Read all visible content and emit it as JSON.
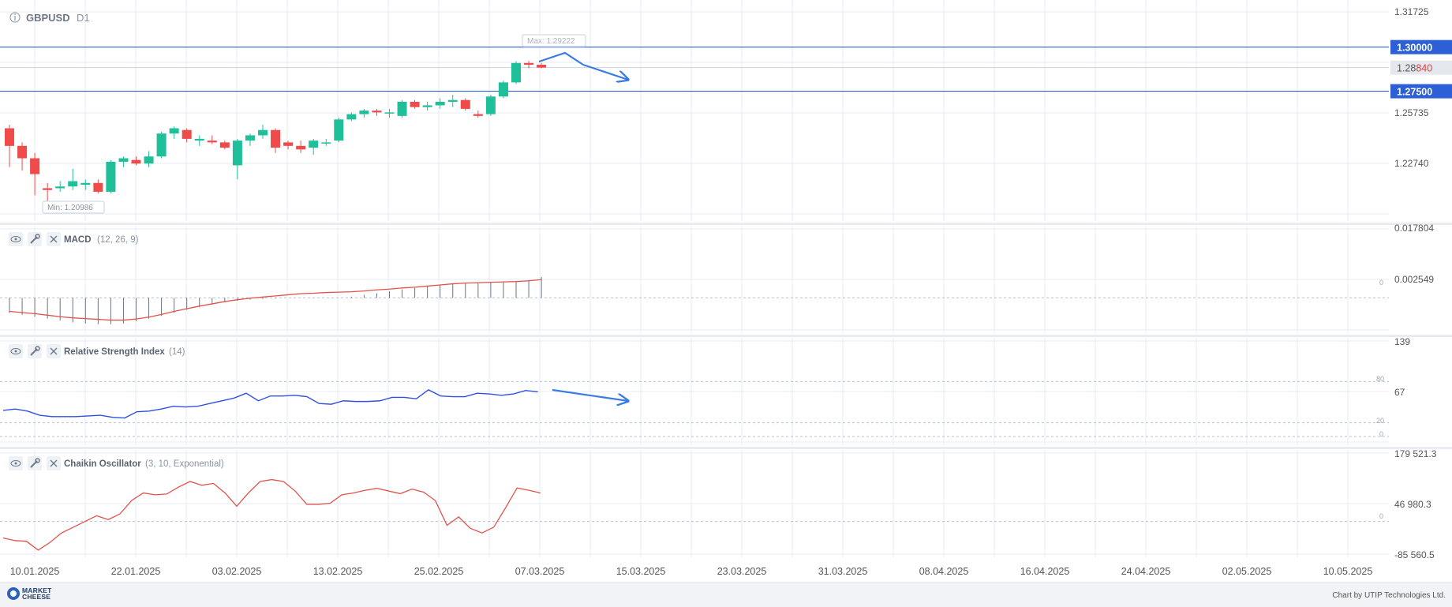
{
  "header": {
    "symbol": "GBPUSD",
    "timeframe": "D1",
    "max_label": "Max: 1.29222",
    "min_label": "Min: 1.20986"
  },
  "price_axis": {
    "ticks": [
      "1.31725",
      "1.25735",
      "1.22740"
    ],
    "levels": [
      {
        "label": "1.30000",
        "value": 1.3
      },
      {
        "label": "1.27500",
        "value": 1.275
      }
    ],
    "current": {
      "prefix": "1.28",
      "suffix": "840",
      "value": 1.2884
    }
  },
  "panels": {
    "macd": {
      "name": "MACD",
      "params": "(12, 26, 9)",
      "ticks": [
        "0.017804",
        "0.002549"
      ],
      "zero_label": "0"
    },
    "rsi": {
      "name": "Relative Strength Index",
      "params": "(14)",
      "ticks": [
        "139",
        "67"
      ],
      "levels": [
        "80",
        "20",
        "0"
      ]
    },
    "chaikin": {
      "name": "Chaikin Oscillator",
      "params": "(3, 10, Exponential)",
      "ticks": [
        "179 521.3",
        "46 980.3",
        "-85 560.5"
      ],
      "zero_label": "0"
    }
  },
  "x_axis": {
    "dates": [
      "10.01.2025",
      "22.01.2025",
      "03.02.2025",
      "13.02.2025",
      "25.02.2025",
      "07.03.2025",
      "15.03.2025",
      "23.03.2025",
      "31.03.2025",
      "08.04.2025",
      "16.04.2025",
      "24.04.2025",
      "02.05.2025",
      "10.05.2025"
    ]
  },
  "footer": {
    "logo_line1": "MARKET",
    "logo_line2": "CHEESE",
    "credit": "Chart by UTIP Technologies Ltd."
  },
  "colors": {
    "bull": "#1fbf9a",
    "bear": "#ef4b4b",
    "level_line": "#2d5fd6",
    "rsi": "#3050e0",
    "osc": "#e0534b",
    "grid": "#e6ebf5",
    "arrow": "#3a7be0"
  },
  "chart_data": [
    {
      "type": "candlestick",
      "title": "GBPUSD D1",
      "ylim": [
        1.205,
        1.32
      ],
      "candles": [
        {
          "o": 1.254,
          "h": 1.256,
          "l": 1.232,
          "c": 1.244
        },
        {
          "o": 1.244,
          "h": 1.246,
          "l": 1.23,
          "c": 1.237
        },
        {
          "o": 1.237,
          "h": 1.24,
          "l": 1.216,
          "c": 1.228
        },
        {
          "o": 1.22,
          "h": 1.223,
          "l": 1.2099,
          "c": 1.219
        },
        {
          "o": 1.22,
          "h": 1.224,
          "l": 1.218,
          "c": 1.221
        },
        {
          "o": 1.221,
          "h": 1.231,
          "l": 1.219,
          "c": 1.224
        },
        {
          "o": 1.222,
          "h": 1.225,
          "l": 1.219,
          "c": 1.223
        },
        {
          "o": 1.223,
          "h": 1.225,
          "l": 1.217,
          "c": 1.218
        },
        {
          "o": 1.218,
          "h": 1.236,
          "l": 1.217,
          "c": 1.235
        },
        {
          "o": 1.235,
          "h": 1.238,
          "l": 1.232,
          "c": 1.237
        },
        {
          "o": 1.236,
          "h": 1.238,
          "l": 1.233,
          "c": 1.234
        },
        {
          "o": 1.234,
          "h": 1.241,
          "l": 1.232,
          "c": 1.238
        },
        {
          "o": 1.238,
          "h": 1.252,
          "l": 1.237,
          "c": 1.251
        },
        {
          "o": 1.251,
          "h": 1.255,
          "l": 1.248,
          "c": 1.254
        },
        {
          "o": 1.253,
          "h": 1.254,
          "l": 1.246,
          "c": 1.248
        },
        {
          "o": 1.247,
          "h": 1.25,
          "l": 1.244,
          "c": 1.248
        },
        {
          "o": 1.247,
          "h": 1.25,
          "l": 1.245,
          "c": 1.246
        },
        {
          "o": 1.246,
          "h": 1.247,
          "l": 1.242,
          "c": 1.243
        },
        {
          "o": 1.233,
          "h": 1.248,
          "l": 1.225,
          "c": 1.247
        },
        {
          "o": 1.247,
          "h": 1.251,
          "l": 1.244,
          "c": 1.25
        },
        {
          "o": 1.25,
          "h": 1.256,
          "l": 1.248,
          "c": 1.253
        },
        {
          "o": 1.253,
          "h": 1.254,
          "l": 1.24,
          "c": 1.243
        },
        {
          "o": 1.246,
          "h": 1.247,
          "l": 1.242,
          "c": 1.244
        },
        {
          "o": 1.244,
          "h": 1.247,
          "l": 1.24,
          "c": 1.242
        },
        {
          "o": 1.243,
          "h": 1.248,
          "l": 1.239,
          "c": 1.247
        },
        {
          "o": 1.246,
          "h": 1.248,
          "l": 1.244,
          "c": 1.246
        },
        {
          "o": 1.247,
          "h": 1.26,
          "l": 1.246,
          "c": 1.259
        },
        {
          "o": 1.259,
          "h": 1.263,
          "l": 1.258,
          "c": 1.262
        },
        {
          "o": 1.262,
          "h": 1.265,
          "l": 1.26,
          "c": 1.264
        },
        {
          "o": 1.264,
          "h": 1.265,
          "l": 1.261,
          "c": 1.263
        },
        {
          "o": 1.263,
          "h": 1.265,
          "l": 1.26,
          "c": 1.263
        },
        {
          "o": 1.261,
          "h": 1.27,
          "l": 1.26,
          "c": 1.269
        },
        {
          "o": 1.269,
          "h": 1.27,
          "l": 1.265,
          "c": 1.266
        },
        {
          "o": 1.266,
          "h": 1.269,
          "l": 1.264,
          "c": 1.267
        },
        {
          "o": 1.267,
          "h": 1.271,
          "l": 1.265,
          "c": 1.269
        },
        {
          "o": 1.269,
          "h": 1.273,
          "l": 1.266,
          "c": 1.27
        },
        {
          "o": 1.27,
          "h": 1.271,
          "l": 1.264,
          "c": 1.265
        },
        {
          "o": 1.262,
          "h": 1.264,
          "l": 1.26,
          "c": 1.261
        },
        {
          "o": 1.262,
          "h": 1.273,
          "l": 1.261,
          "c": 1.272
        },
        {
          "o": 1.272,
          "h": 1.281,
          "l": 1.271,
          "c": 1.28
        },
        {
          "o": 1.28,
          "h": 1.292,
          "l": 1.279,
          "c": 1.291
        },
        {
          "o": 1.291,
          "h": 1.2922,
          "l": 1.288,
          "c": 1.29
        },
        {
          "o": 1.29,
          "h": 1.291,
          "l": 1.288,
          "c": 1.2884
        }
      ]
    },
    {
      "type": "bar",
      "title": "MACD (12, 26, 9)",
      "ylim": [
        -0.0085,
        0.0178
      ],
      "zero_line": 0,
      "histogram": [
        -0.004,
        -0.0045,
        -0.005,
        -0.0055,
        -0.006,
        -0.0065,
        -0.0068,
        -0.007,
        -0.007,
        -0.0068,
        -0.0062,
        -0.0055,
        -0.0048,
        -0.004,
        -0.0032,
        -0.0025,
        -0.0018,
        -0.0012,
        -0.0008,
        -0.0005,
        -0.0003,
        -0.0002,
        0,
        0,
        0,
        0,
        0,
        0.0003,
        0.0008,
        0.0012,
        0.0017,
        0.0022,
        0.0026,
        0.003,
        0.0033,
        0.0036,
        0.0038,
        0.004,
        0.004,
        0.0042,
        0.0044,
        0.0047,
        0.0055
      ],
      "signal": [
        -0.0036,
        -0.0039,
        -0.0042,
        -0.0046,
        -0.005,
        -0.0053,
        -0.0055,
        -0.0057,
        -0.0059,
        -0.0059,
        -0.0056,
        -0.0051,
        -0.0044,
        -0.0036,
        -0.0029,
        -0.0022,
        -0.0016,
        -0.001,
        -0.0005,
        -0.0001,
        0.0002,
        0.0005,
        0.0008,
        0.0011,
        0.0012,
        0.0014,
        0.0015,
        0.0016,
        0.0018,
        0.0021,
        0.0023,
        0.0026,
        0.0028,
        0.0031,
        0.0034,
        0.0037,
        0.0039,
        0.004,
        0.0041,
        0.0042,
        0.0043,
        0.0045,
        0.0048
      ]
    },
    {
      "type": "line",
      "title": "Relative Strength Index (14)",
      "ylim": [
        -8,
        139
      ],
      "levels": [
        80,
        20,
        0
      ],
      "values": [
        38,
        40,
        37,
        31,
        29,
        29,
        29,
        30,
        31,
        28,
        27,
        36,
        37,
        40,
        44,
        43,
        44,
        48,
        52,
        56,
        63,
        52,
        59,
        59,
        60,
        58,
        48,
        47,
        52,
        51,
        51,
        52,
        57,
        57,
        55,
        68,
        59,
        58,
        58,
        63,
        62,
        60,
        62,
        67,
        65
      ]
    },
    {
      "type": "line",
      "title": "Chaikin Oscillator (3, 10, Exponential)",
      "ylim": [
        -85560.5,
        179521.3
      ],
      "zero_line": 0,
      "values": [
        -43000,
        -50000,
        -52000,
        -75000,
        -55000,
        -30000,
        -15000,
        0,
        15000,
        5000,
        20000,
        55000,
        75000,
        70000,
        72000,
        90000,
        105000,
        95000,
        100000,
        75000,
        40000,
        75000,
        105000,
        110000,
        105000,
        80000,
        45000,
        45000,
        48000,
        70000,
        75000,
        82000,
        87000,
        80000,
        73000,
        85000,
        77000,
        55000,
        -10000,
        12000,
        -18000,
        -30000,
        -15000,
        35000,
        88000,
        82000,
        75000
      ]
    }
  ]
}
